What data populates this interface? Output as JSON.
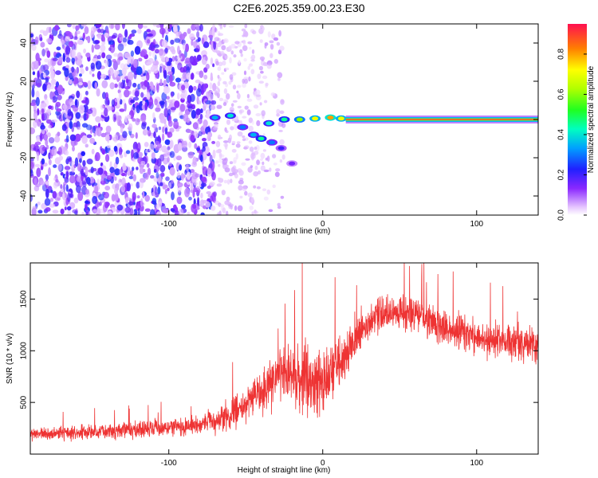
{
  "title": "C2E6.2025.359.00.23.E30",
  "chart_data": [
    {
      "type": "heatmap",
      "xlabel": "Height of straight line (km)",
      "ylabel": "Frequency (Hz)",
      "xlim": [
        -190,
        140
      ],
      "ylim": [
        -50,
        50
      ],
      "xticks": [
        -100,
        0,
        100
      ],
      "yticks": [
        -40,
        -20,
        0,
        20,
        40
      ],
      "colorbar": {
        "label": "Normalized spectral amplitude",
        "range": [
          0,
          0.95
        ],
        "ticks": [
          0.0,
          0.2,
          0.4,
          0.6,
          0.8
        ],
        "tick_labels": [
          "0.0",
          "0.2",
          "0.4",
          "0.6",
          "0.8"
        ]
      },
      "features": {
        "noise_region_x": [
          -190,
          -70
        ],
        "scattered_fade_x": [
          -70,
          -25
        ],
        "carrier_frequency_hz": 0,
        "carrier_start_x": 15,
        "branch_points": [
          {
            "x": -70,
            "y": 1,
            "amp": 0.35
          },
          {
            "x": -60,
            "y": 2,
            "amp": 0.4
          },
          {
            "x": -52,
            "y": -4,
            "amp": 0.3
          },
          {
            "x": -45,
            "y": -8,
            "amp": 0.35
          },
          {
            "x": -40,
            "y": -10,
            "amp": 0.45
          },
          {
            "x": -33,
            "y": -12,
            "amp": 0.3
          },
          {
            "x": -27,
            "y": -15,
            "amp": 0.2
          },
          {
            "x": -20,
            "y": -23,
            "amp": 0.15
          },
          {
            "x": -35,
            "y": -2,
            "amp": 0.4
          },
          {
            "x": -25,
            "y": 0,
            "amp": 0.45
          },
          {
            "x": -15,
            "y": 0,
            "amp": 0.6
          },
          {
            "x": -5,
            "y": 0.5,
            "amp": 0.7
          },
          {
            "x": 5,
            "y": 1,
            "amp": 0.8
          },
          {
            "x": 12,
            "y": 0.5,
            "amp": 0.7
          }
        ]
      }
    },
    {
      "type": "line",
      "xlabel": "Height of straight line (km)",
      "ylabel": "SNR (10 * v/v)",
      "xlim": [
        -190,
        140
      ],
      "ylim": [
        0,
        1850
      ],
      "xticks": [
        -100,
        0,
        100
      ],
      "yticks": [
        500,
        1000,
        1500
      ],
      "series": [
        {
          "color": "#ee3333",
          "envelope": [
            {
              "x": -190,
              "center": 190,
              "spread": 90
            },
            {
              "x": -150,
              "center": 210,
              "spread": 100
            },
            {
              "x": -100,
              "center": 260,
              "spread": 120
            },
            {
              "x": -80,
              "center": 280,
              "spread": 130
            },
            {
              "x": -60,
              "center": 380,
              "spread": 220
            },
            {
              "x": -40,
              "center": 600,
              "spread": 320
            },
            {
              "x": -25,
              "center": 800,
              "spread": 380
            },
            {
              "x": -10,
              "center": 700,
              "spread": 550
            },
            {
              "x": 0,
              "center": 700,
              "spread": 500
            },
            {
              "x": 15,
              "center": 950,
              "spread": 400
            },
            {
              "x": 25,
              "center": 1200,
              "spread": 280
            },
            {
              "x": 40,
              "center": 1380,
              "spread": 260
            },
            {
              "x": 60,
              "center": 1360,
              "spread": 250
            },
            {
              "x": 80,
              "center": 1220,
              "spread": 260
            },
            {
              "x": 100,
              "center": 1120,
              "spread": 250
            },
            {
              "x": 120,
              "center": 1080,
              "spread": 240
            },
            {
              "x": 140,
              "center": 1050,
              "spread": 230
            }
          ]
        }
      ]
    }
  ]
}
